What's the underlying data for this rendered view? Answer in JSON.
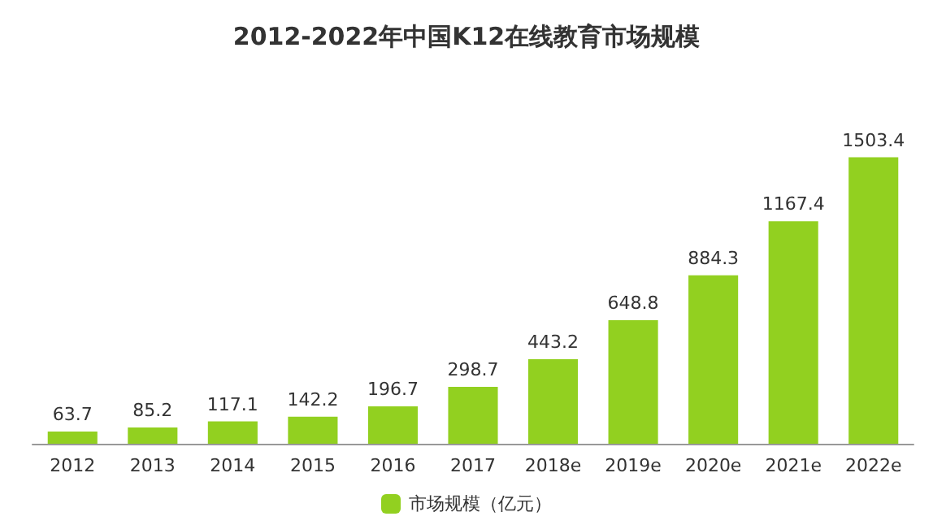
{
  "chart_data": {
    "type": "bar",
    "title": "2012-2022年中国K12在线教育市场规模",
    "categories": [
      "2012",
      "2013",
      "2014",
      "2015",
      "2016",
      "2017",
      "2018e",
      "2019e",
      "2020e",
      "2021e",
      "2022e"
    ],
    "series": [
      {
        "name": "市场规模（亿元）",
        "color": "#92d020",
        "values": [
          63.7,
          85.2,
          117.1,
          142.2,
          196.7,
          298.7,
          443.2,
          648.8,
          884.3,
          1167.4,
          1503.4
        ]
      }
    ],
    "data_labels": true,
    "legend": "bottom",
    "grid": false
  }
}
